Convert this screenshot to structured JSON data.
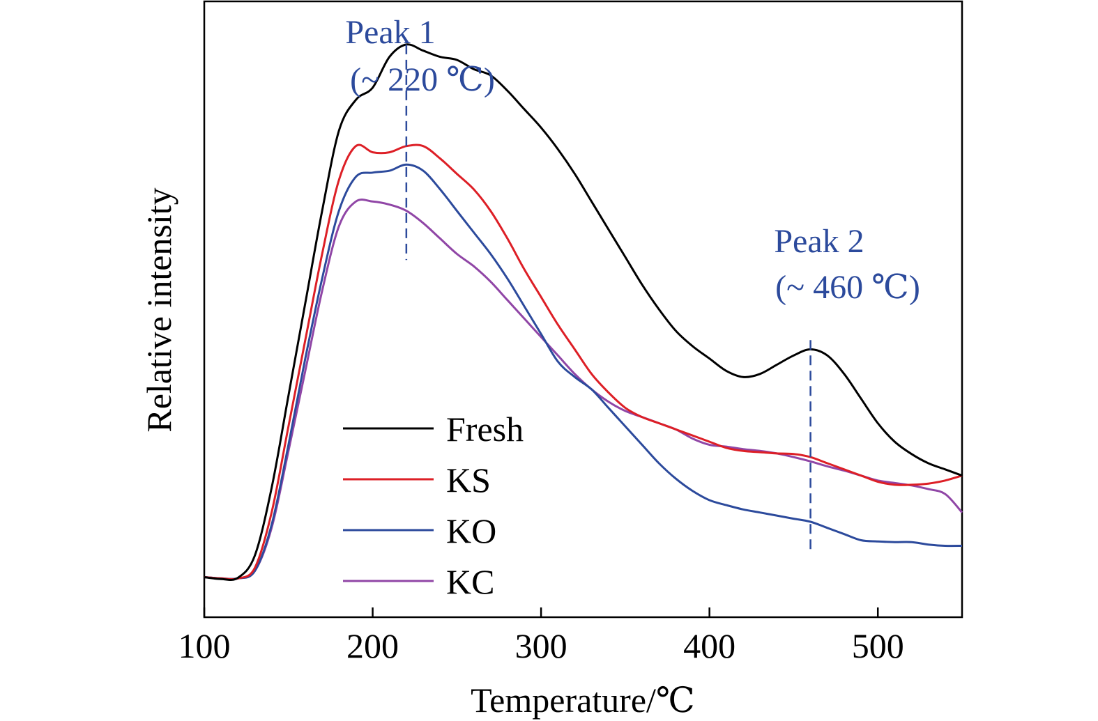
{
  "chart_data": {
    "type": "line",
    "title": "",
    "xlabel": "Temperature/℃",
    "ylabel": "Relative intensity",
    "xlim": [
      100,
      550
    ],
    "ylim": [
      0,
      100
    ],
    "xticks": [
      100,
      200,
      300,
      400,
      500
    ],
    "xtick_labels": [
      "100",
      "200",
      "300",
      "400",
      "500"
    ],
    "y_ticks_shown": false,
    "grid": false,
    "legend_position": "bottom-center",
    "colors": {
      "Fresh": "#000000",
      "KS": "#dd1f26",
      "KO": "#2c4a9c",
      "KC": "#9046a6",
      "annotation": "#2c4a9c"
    },
    "series": [
      {
        "name": "Fresh",
        "x": [
          100,
          110,
          120,
          130,
          140,
          150,
          160,
          170,
          180,
          190,
          200,
          210,
          220,
          230,
          240,
          250,
          260,
          270,
          280,
          290,
          300,
          310,
          320,
          330,
          340,
          350,
          360,
          370,
          380,
          390,
          400,
          410,
          420,
          430,
          440,
          450,
          460,
          470,
          480,
          490,
          500,
          510,
          520,
          530,
          540,
          550
        ],
        "values": [
          6.5,
          6.2,
          6.4,
          10,
          21,
          36,
          51,
          66,
          79,
          84,
          86,
          91,
          93,
          92,
          91,
          90.5,
          89,
          88,
          85.5,
          82.5,
          79.5,
          76,
          72,
          67.5,
          63,
          58.5,
          54,
          50,
          46.5,
          44,
          42,
          40,
          39,
          39.5,
          41,
          42.5,
          43.5,
          42.5,
          39.5,
          35.5,
          31.5,
          28.5,
          26.5,
          25,
          24,
          23
        ]
      },
      {
        "name": "KS",
        "x": [
          100,
          110,
          120,
          130,
          140,
          150,
          160,
          170,
          180,
          190,
          200,
          210,
          220,
          230,
          240,
          250,
          260,
          270,
          280,
          290,
          300,
          310,
          320,
          330,
          340,
          350,
          360,
          370,
          380,
          390,
          400,
          410,
          420,
          430,
          440,
          450,
          460,
          470,
          480,
          490,
          500,
          510,
          520,
          530,
          540,
          550
        ],
        "values": [
          6.5,
          6.3,
          6.3,
          8,
          17,
          31,
          45,
          59,
          71,
          76.5,
          75.5,
          75.5,
          76.5,
          76.5,
          74.5,
          72,
          69.5,
          66,
          61.5,
          56.5,
          52,
          47.5,
          43.5,
          39.5,
          36.5,
          34,
          32.5,
          31.5,
          30.5,
          29.5,
          28.5,
          27.5,
          27,
          26.8,
          26.6,
          26.5,
          26,
          25,
          24,
          23,
          22,
          21.5,
          21.5,
          21.7,
          22.2,
          23
        ]
      },
      {
        "name": "KO",
        "x": [
          100,
          110,
          120,
          130,
          140,
          150,
          160,
          170,
          180,
          190,
          200,
          210,
          220,
          230,
          240,
          250,
          260,
          270,
          280,
          290,
          300,
          310,
          320,
          330,
          340,
          350,
          360,
          370,
          380,
          390,
          400,
          410,
          420,
          430,
          440,
          450,
          460,
          470,
          480,
          490,
          500,
          510,
          520,
          530,
          540,
          550
        ],
        "values": [
          6.5,
          6.3,
          6.3,
          7.5,
          15,
          28,
          42,
          55,
          66,
          71.5,
          72.2,
          72.5,
          73.5,
          72.5,
          69.5,
          66,
          62.5,
          59,
          55,
          50.5,
          46,
          41.5,
          39,
          37,
          34,
          31,
          28,
          25,
          22.5,
          20.5,
          19,
          18.2,
          17.5,
          17,
          16.5,
          16,
          15.5,
          14.5,
          13.5,
          12.5,
          12.3,
          12.2,
          12.2,
          11.8,
          11.6,
          11.6
        ]
      },
      {
        "name": "KC",
        "x": [
          100,
          110,
          120,
          130,
          140,
          150,
          160,
          170,
          180,
          190,
          200,
          210,
          220,
          230,
          240,
          250,
          260,
          270,
          280,
          290,
          300,
          310,
          320,
          330,
          340,
          350,
          360,
          370,
          380,
          390,
          400,
          410,
          420,
          430,
          440,
          450,
          460,
          470,
          480,
          490,
          500,
          510,
          520,
          530,
          540,
          550
        ],
        "values": [
          6.5,
          6.3,
          6.3,
          7.5,
          14.5,
          27,
          40,
          53,
          63.5,
          67.5,
          67.5,
          67,
          66,
          64,
          61.5,
          59,
          57,
          54.5,
          51.5,
          48.5,
          45.5,
          42.5,
          39.5,
          37,
          35,
          33.5,
          32.5,
          31.5,
          30.5,
          29,
          28,
          27.7,
          27.3,
          27,
          26.6,
          26,
          25.3,
          24.5,
          23.8,
          23,
          22.2,
          21.8,
          21.4,
          20.8,
          20,
          17
        ]
      }
    ],
    "annotations": [
      {
        "line1": "Peak 1",
        "line2": "(~ 220 ℃)",
        "x": 220,
        "line_top": 93,
        "line_bottom": 58
      },
      {
        "line1": "Peak 2",
        "line2": "(~ 460 ℃)",
        "x": 460,
        "line_top": 45,
        "line_bottom": 11
      }
    ]
  }
}
